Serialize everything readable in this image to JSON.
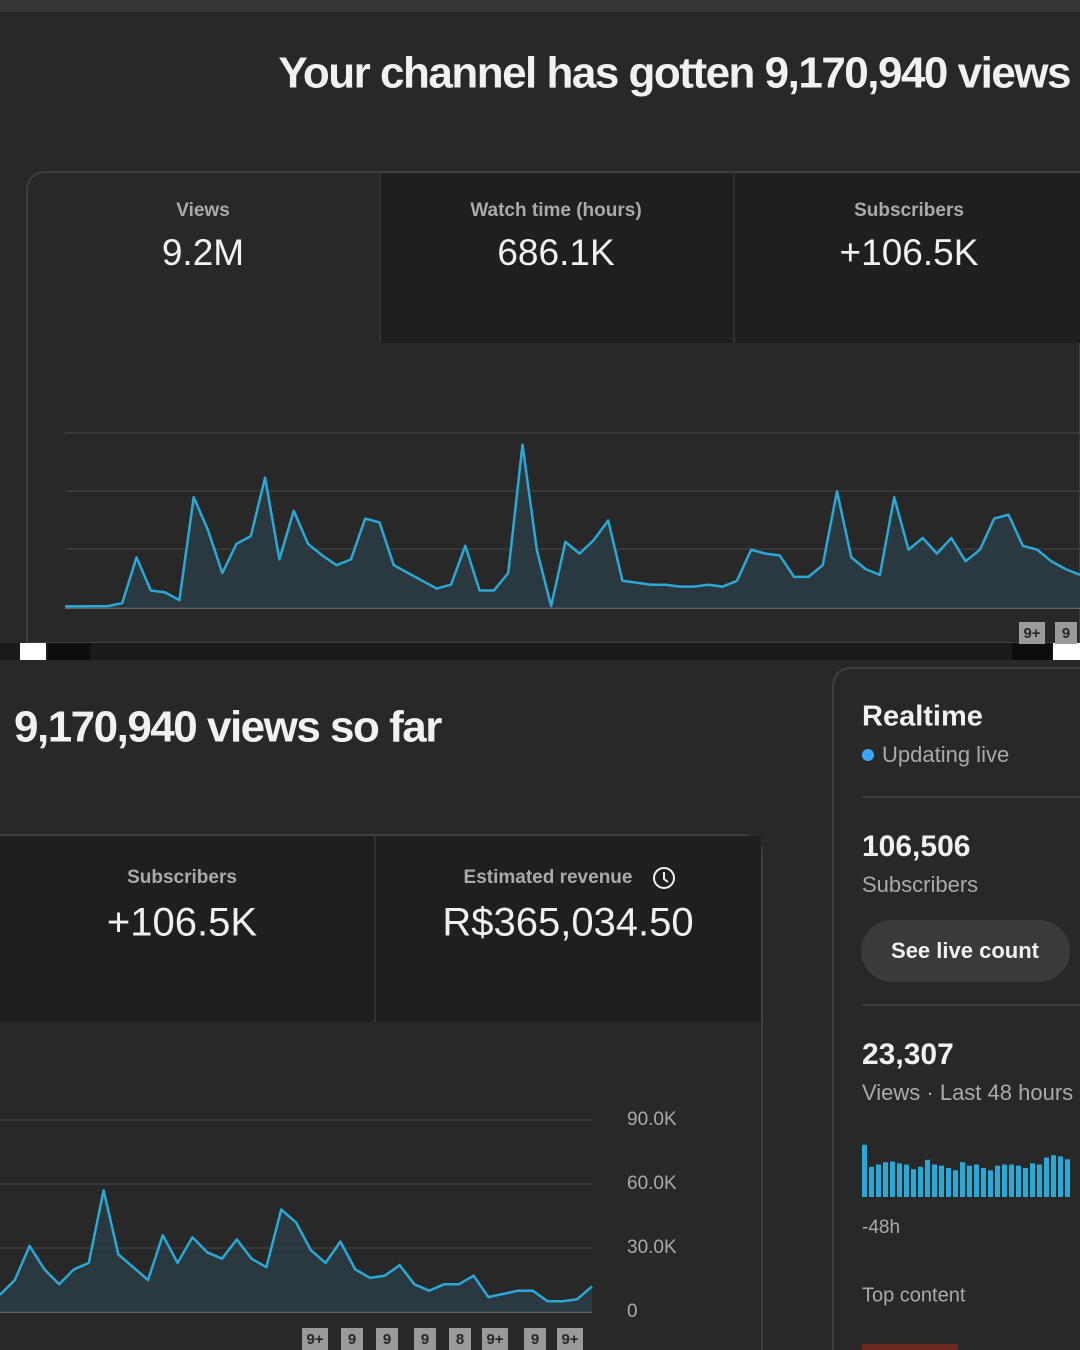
{
  "header": {
    "title": "Your channel has gotten 9,170,940 views"
  },
  "top_card": {
    "tabs": [
      {
        "label": "Views",
        "value": "9.2M"
      },
      {
        "label": "Watch time (hours)",
        "value": "686.1K"
      },
      {
        "label": "Subscribers",
        "value": "+106.5K"
      }
    ],
    "chart_data": {
      "type": "line",
      "color": "#2ba9d6",
      "ylim": [
        0,
        90000
      ],
      "values": [
        800,
        800,
        900,
        1000,
        2500,
        26000,
        9000,
        8000,
        4000,
        57000,
        40000,
        18000,
        33000,
        37000,
        67000,
        25000,
        50000,
        33000,
        27000,
        22000,
        25000,
        46000,
        44000,
        22000,
        18000,
        14000,
        10000,
        12000,
        32000,
        9000,
        9000,
        18000,
        84000,
        30000,
        1000,
        34000,
        28000,
        35000,
        45000,
        14000,
        13000,
        12000,
        12000,
        11000,
        11000,
        12000,
        11000,
        14000,
        30000,
        28000,
        27000,
        16000,
        16000,
        22000,
        60000,
        26000,
        20000,
        17000,
        57000,
        30000,
        36000,
        28000,
        36000,
        24000,
        30000,
        46000,
        48000,
        32000,
        30000,
        24000,
        20000,
        17000
      ],
      "markers": [
        "9+",
        "9"
      ]
    }
  },
  "bottom_card": {
    "title": "9,170,940 views so far",
    "tabs": [
      {
        "label": "Subscribers",
        "value": "+106.5K"
      },
      {
        "label": "Estimated revenue",
        "value": "R$365,034.50"
      }
    ],
    "chart_data": {
      "type": "line",
      "color": "#2ba9d6",
      "ylim": [
        0,
        90000
      ],
      "yticks": [
        0,
        {
          "value": 30000,
          "label": "30.0K"
        },
        {
          "value": 60000,
          "label": "60.0K"
        },
        {
          "value": 90000,
          "label": "90.0K"
        }
      ],
      "values": [
        8000,
        15000,
        31000,
        20000,
        13000,
        20000,
        23000,
        57000,
        27000,
        21000,
        15000,
        36000,
        23000,
        35000,
        28000,
        25000,
        34000,
        25000,
        21000,
        48000,
        42000,
        29000,
        23000,
        33000,
        20000,
        16000,
        17000,
        22000,
        13000,
        10000,
        13000,
        13000,
        17000,
        7000,
        8500,
        10000,
        10000,
        5000,
        5000,
        6000,
        12000
      ],
      "markers": [
        "9+",
        "9",
        "9",
        "9",
        "8",
        "9+",
        "9",
        "9+"
      ]
    }
  },
  "realtime": {
    "title": "Realtime",
    "status": "Updating live",
    "subscribers": {
      "value": "106,506",
      "label": "Subscribers"
    },
    "button": "See live count",
    "views": {
      "value": "23,307",
      "label": "Views · Last 48 hours"
    },
    "chart_data": {
      "type": "bar",
      "color": "#2ba9d6",
      "ylim": [
        0,
        1000
      ],
      "values": [
        900,
        520,
        560,
        600,
        610,
        580,
        560,
        480,
        520,
        640,
        560,
        540,
        500,
        460,
        600,
        540,
        560,
        500,
        460,
        540,
        560,
        560,
        540,
        500,
        580,
        560,
        680,
        720,
        700,
        650
      ],
      "x_label": "-48h"
    },
    "top_content": "Top content"
  }
}
